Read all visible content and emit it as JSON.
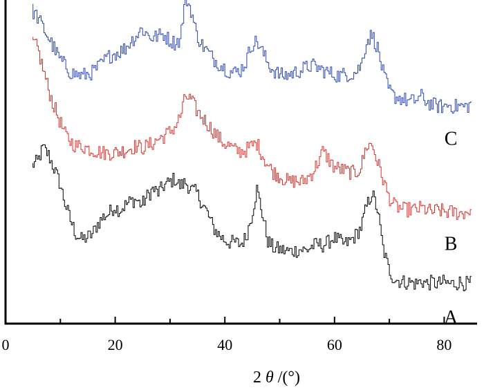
{
  "chart_data": {
    "type": "line",
    "title": "",
    "xlabel_main": "2 ",
    "xlabel_symbol": "θ",
    "xlabel_unit": " /(°)",
    "ylabel": "",
    "xlim": [
      0,
      86
    ],
    "xticks": [
      0,
      20,
      40,
      60,
      80
    ],
    "minor_xticks": [
      10,
      30,
      50,
      70
    ],
    "ylim": [
      0,
      470
    ],
    "grid": false,
    "legend": "none",
    "series": [
      {
        "name": "A",
        "color": "#000000",
        "points": [
          [
            5,
            230
          ],
          [
            6,
            235
          ],
          [
            7,
            255
          ],
          [
            8,
            245
          ],
          [
            9,
            225
          ],
          [
            10,
            205
          ],
          [
            11,
            175
          ],
          [
            12,
            150
          ],
          [
            13,
            130
          ],
          [
            14,
            122
          ],
          [
            15,
            125
          ],
          [
            16,
            130
          ],
          [
            17,
            145
          ],
          [
            18,
            155
          ],
          [
            19,
            160
          ],
          [
            20,
            170
          ],
          [
            21,
            165
          ],
          [
            22,
            172
          ],
          [
            23,
            178
          ],
          [
            24,
            180
          ],
          [
            25,
            172
          ],
          [
            26,
            185
          ],
          [
            27,
            195
          ],
          [
            28,
            190
          ],
          [
            29,
            200
          ],
          [
            30,
            205
          ],
          [
            31,
            210
          ],
          [
            32,
            200
          ],
          [
            33,
            205
          ],
          [
            34,
            195
          ],
          [
            35,
            190
          ],
          [
            36,
            175
          ],
          [
            37,
            160
          ],
          [
            38,
            140
          ],
          [
            39,
            130
          ],
          [
            40,
            122
          ],
          [
            41,
            118
          ],
          [
            42,
            118
          ],
          [
            43,
            115
          ],
          [
            44,
            125
          ],
          [
            45,
            155
          ],
          [
            46,
            195
          ],
          [
            47,
            160
          ],
          [
            48,
            120
          ],
          [
            49,
            110
          ],
          [
            50,
            108
          ],
          [
            51,
            106
          ],
          [
            52,
            105
          ],
          [
            53,
            106
          ],
          [
            54,
            108
          ],
          [
            55,
            106
          ],
          [
            56,
            112
          ],
          [
            57,
            115
          ],
          [
            58,
            114
          ],
          [
            59,
            118
          ],
          [
            60,
            125
          ],
          [
            61,
            120
          ],
          [
            62,
            115
          ],
          [
            63,
            120
          ],
          [
            64,
            128
          ],
          [
            65,
            140
          ],
          [
            66,
            170
          ],
          [
            67,
            190
          ],
          [
            68,
            165
          ],
          [
            69,
            110
          ],
          [
            70,
            80
          ],
          [
            71,
            65
          ],
          [
            72,
            62
          ],
          [
            73,
            60
          ],
          [
            74,
            60
          ],
          [
            75,
            58
          ],
          [
            76,
            62
          ],
          [
            77,
            58
          ],
          [
            78,
            60
          ],
          [
            79,
            58
          ],
          [
            80,
            60
          ],
          [
            81,
            58
          ],
          [
            82,
            58
          ],
          [
            83,
            60
          ],
          [
            84,
            58
          ],
          [
            85,
            58
          ]
        ]
      },
      {
        "name": "B",
        "color": "#d9302a",
        "points": [
          [
            5,
            410
          ],
          [
            6,
            400
          ],
          [
            7,
            370
          ],
          [
            8,
            340
          ],
          [
            9,
            315
          ],
          [
            10,
            295
          ],
          [
            11,
            275
          ],
          [
            12,
            265
          ],
          [
            13,
            258
          ],
          [
            14,
            258
          ],
          [
            15,
            255
          ],
          [
            16,
            252
          ],
          [
            17,
            250
          ],
          [
            18,
            248
          ],
          [
            19,
            248
          ],
          [
            20,
            248
          ],
          [
            21,
            250
          ],
          [
            22,
            252
          ],
          [
            23,
            255
          ],
          [
            24,
            258
          ],
          [
            25,
            255
          ],
          [
            26,
            258
          ],
          [
            27,
            262
          ],
          [
            28,
            268
          ],
          [
            29,
            272
          ],
          [
            30,
            278
          ],
          [
            31,
            285
          ],
          [
            32,
            300
          ],
          [
            33,
            330
          ],
          [
            34,
            325
          ],
          [
            35,
            310
          ],
          [
            36,
            300
          ],
          [
            37,
            290
          ],
          [
            38,
            280
          ],
          [
            39,
            270
          ],
          [
            40,
            262
          ],
          [
            41,
            258
          ],
          [
            42,
            252
          ],
          [
            43,
            250
          ],
          [
            44,
            252
          ],
          [
            45,
            258
          ],
          [
            46,
            262
          ],
          [
            47,
            245
          ],
          [
            48,
            230
          ],
          [
            49,
            220
          ],
          [
            50,
            215
          ],
          [
            51,
            210
          ],
          [
            52,
            205
          ],
          [
            53,
            208
          ],
          [
            54,
            205
          ],
          [
            55,
            210
          ],
          [
            56,
            218
          ],
          [
            57,
            232
          ],
          [
            58,
            250
          ],
          [
            59,
            240
          ],
          [
            60,
            228
          ],
          [
            61,
            225
          ],
          [
            62,
            222
          ],
          [
            63,
            220
          ],
          [
            64,
            218
          ],
          [
            65,
            228
          ],
          [
            66,
            258
          ],
          [
            67,
            260
          ],
          [
            68,
            235
          ],
          [
            69,
            210
          ],
          [
            70,
            185
          ],
          [
            71,
            172
          ],
          [
            72,
            168
          ],
          [
            73,
            165
          ],
          [
            74,
            166
          ],
          [
            75,
            165
          ],
          [
            76,
            168
          ],
          [
            77,
            165
          ],
          [
            78,
            162
          ],
          [
            79,
            165
          ],
          [
            80,
            163
          ],
          [
            81,
            162
          ],
          [
            82,
            162
          ],
          [
            83,
            160
          ],
          [
            84,
            162
          ],
          [
            85,
            165
          ]
        ]
      },
      {
        "name": "C",
        "color": "#2a45b5",
        "points": [
          [
            5,
            455
          ],
          [
            6,
            445
          ],
          [
            7,
            430
          ],
          [
            8,
            415
          ],
          [
            9,
            400
          ],
          [
            10,
            385
          ],
          [
            11,
            375
          ],
          [
            12,
            365
          ],
          [
            13,
            362
          ],
          [
            14,
            360
          ],
          [
            15,
            362
          ],
          [
            16,
            365
          ],
          [
            17,
            372
          ],
          [
            18,
            380
          ],
          [
            19,
            388
          ],
          [
            20,
            392
          ],
          [
            21,
            395
          ],
          [
            22,
            400
          ],
          [
            23,
            410
          ],
          [
            24,
            418
          ],
          [
            25,
            428
          ],
          [
            26,
            420
          ],
          [
            27,
            415
          ],
          [
            28,
            418
          ],
          [
            29,
            420
          ],
          [
            30,
            412
          ],
          [
            31,
            408
          ],
          [
            32,
            412
          ],
          [
            33,
            475
          ],
          [
            34,
            455
          ],
          [
            35,
            420
          ],
          [
            36,
            405
          ],
          [
            37,
            395
          ],
          [
            38,
            385
          ],
          [
            39,
            378
          ],
          [
            40,
            372
          ],
          [
            41,
            366
          ],
          [
            42,
            365
          ],
          [
            43,
            368
          ],
          [
            44,
            380
          ],
          [
            45,
            405
          ],
          [
            46,
            410
          ],
          [
            47,
            395
          ],
          [
            48,
            378
          ],
          [
            49,
            368
          ],
          [
            50,
            362
          ],
          [
            51,
            360
          ],
          [
            52,
            362
          ],
          [
            53,
            365
          ],
          [
            54,
            368
          ],
          [
            55,
            372
          ],
          [
            56,
            375
          ],
          [
            57,
            372
          ],
          [
            58,
            368
          ],
          [
            59,
            365
          ],
          [
            60,
            362
          ],
          [
            61,
            360
          ],
          [
            62,
            362
          ],
          [
            63,
            362
          ],
          [
            64,
            365
          ],
          [
            65,
            375
          ],
          [
            66,
            410
          ],
          [
            67,
            420
          ],
          [
            68,
            400
          ],
          [
            69,
            365
          ],
          [
            70,
            340
          ],
          [
            71,
            330
          ],
          [
            72,
            328
          ],
          [
            73,
            325
          ],
          [
            74,
            322
          ],
          [
            75,
            325
          ],
          [
            76,
            330
          ],
          [
            77,
            322
          ],
          [
            78,
            318
          ],
          [
            79,
            316
          ],
          [
            80,
            315
          ],
          [
            81,
            318
          ],
          [
            82,
            315
          ],
          [
            83,
            316
          ],
          [
            84,
            315
          ],
          [
            85,
            318
          ]
        ]
      }
    ]
  }
}
